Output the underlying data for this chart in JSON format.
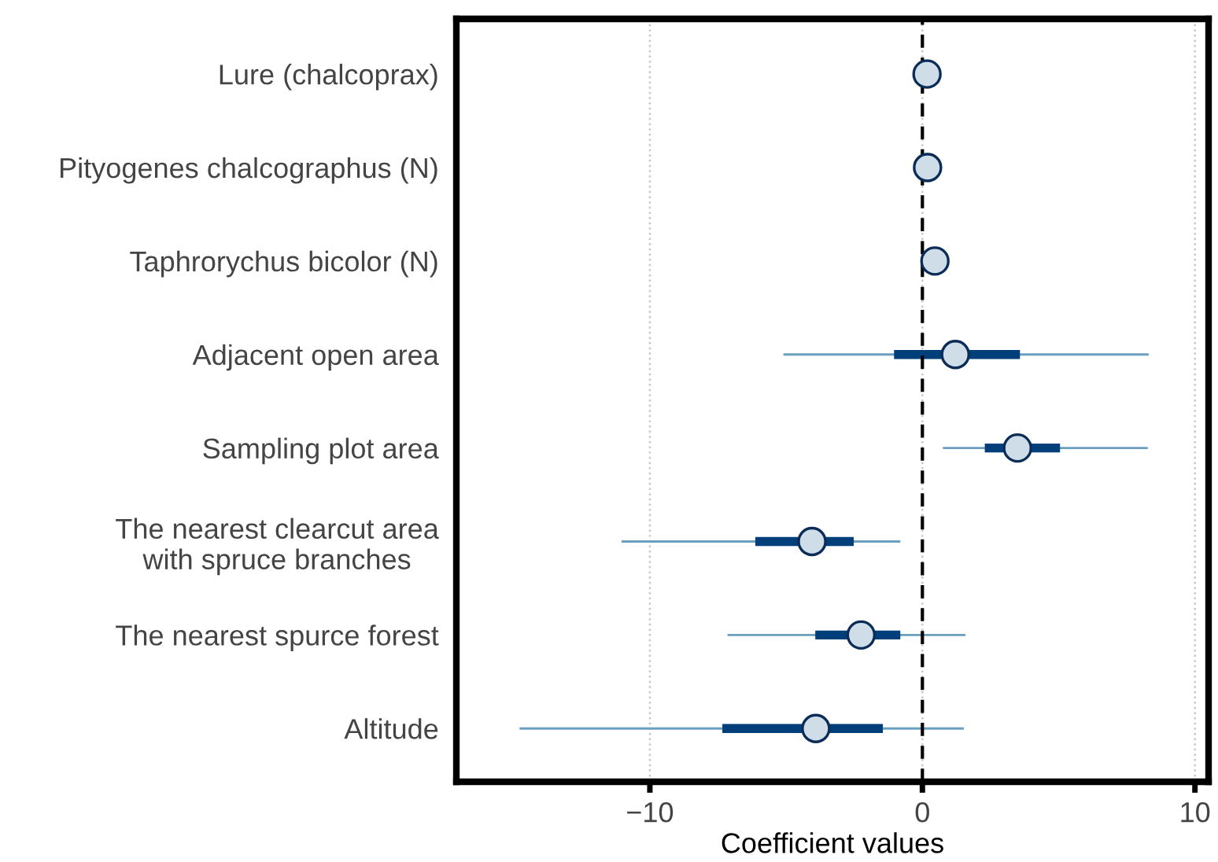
{
  "chart_data": {
    "type": "scatter",
    "orientation": "horizontal",
    "xlabel": "Coefficient values",
    "categories": [
      "Lure (chalcoprax)",
      "Pityogenes chalcographus (N)",
      "Taphrorychus bicolor (N)",
      "Adjacent open area",
      "Sampling plot area",
      "The nearest clearcut area\nwith spruce branches",
      "The nearest spurce forest",
      "Altitude"
    ],
    "series": [
      {
        "type": "bar",
        "color": "#6a9fbf",
        "base": [
          null,
          null,
          null,
          -5.1,
          0.75,
          -11.04,
          -7.15,
          -14.78
        ],
        "values": [
          null,
          null,
          null,
          13.4,
          7.52,
          10.23,
          8.73,
          16.3
        ]
      },
      {
        "type": "bar",
        "color": "#003f7a",
        "base": [
          null,
          null,
          null,
          -1.04,
          2.29,
          -6.13,
          -3.93,
          -7.34
        ],
        "values": [
          null,
          null,
          null,
          4.62,
          2.76,
          3.61,
          3.12,
          5.89
        ]
      },
      {
        "color": "#cfdde9",
        "marker": "circle",
        "values": [
          0.17,
          0.19,
          0.46,
          1.21,
          3.49,
          -4.05,
          -2.25,
          -3.91
        ]
      }
    ],
    "xlim": [
      -17.1,
      10.5
    ],
    "xticks": [
      {
        "value": -10,
        "label": "−10"
      },
      0,
      10
    ],
    "grid": "x",
    "ref_lines": [
      {
        "axis": "x",
        "value": 0,
        "color": "#000000",
        "line_style": "dashed"
      }
    ]
  }
}
